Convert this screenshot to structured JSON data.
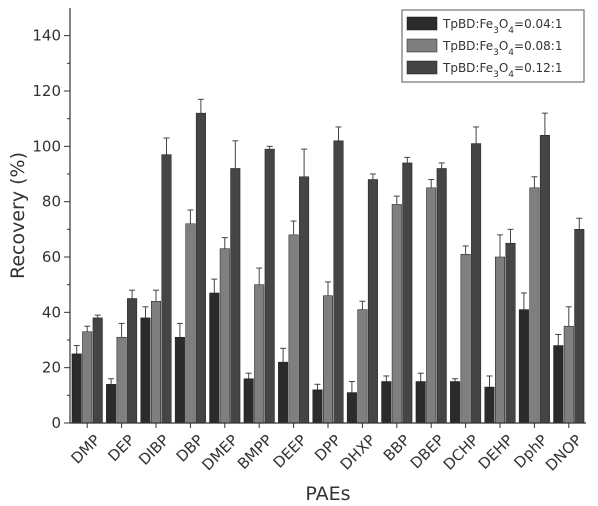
{
  "chart_data": {
    "type": "bar",
    "xlabel": "PAEs",
    "ylabel": "Recovery (%)",
    "ylim": [
      0,
      150
    ],
    "yticks": [
      0,
      20,
      40,
      60,
      80,
      100,
      120,
      140
    ],
    "categories": [
      "DMP",
      "DEP",
      "DIBP",
      "DBP",
      "DMEP",
      "BMPP",
      "DEEP",
      "DPP",
      "DHXP",
      "BBP",
      "DBEP",
      "DCHP",
      "DEHP",
      "DphP",
      "DNOP"
    ],
    "series": [
      {
        "name": "TpBD:Fe3O4=0.04:1",
        "color": "#2b2b2b",
        "values": [
          25,
          14,
          38,
          31,
          47,
          16,
          22,
          12,
          11,
          15,
          15,
          15,
          13,
          41,
          28
        ],
        "errors": [
          3,
          2,
          4,
          5,
          5,
          2,
          5,
          2,
          4,
          2,
          3,
          1,
          4,
          6,
          4
        ]
      },
      {
        "name": "TpBD:Fe3O4=0.08:1",
        "color": "#7f7f7f",
        "values": [
          33,
          31,
          44,
          72,
          63,
          50,
          68,
          46,
          41,
          79,
          85,
          61,
          60,
          85,
          35
        ],
        "errors": [
          2,
          5,
          4,
          5,
          4,
          6,
          5,
          5,
          3,
          3,
          3,
          3,
          8,
          4,
          7
        ]
      },
      {
        "name": "TpBD:Fe3O4=0.12:1",
        "color": "#454545",
        "values": [
          38,
          45,
          97,
          112,
          92,
          99,
          89,
          102,
          88,
          94,
          92,
          101,
          65,
          104,
          70
        ],
        "errors": [
          1,
          3,
          6,
          5,
          10,
          1,
          10,
          5,
          2,
          2,
          2,
          6,
          5,
          8,
          4
        ]
      }
    ],
    "legend": {
      "placement": "top-right",
      "entries": [
        {
          "prefix": "TpBD:Fe",
          "sub1": "3",
          "mid": "O",
          "sub2": "4",
          "suffix": "=0.04:1"
        },
        {
          "prefix": "TpBD:Fe",
          "sub1": "3",
          "mid": "O",
          "sub2": "4",
          "suffix": "=0.08:1"
        },
        {
          "prefix": "TpBD:Fe",
          "sub1": "3",
          "mid": "O",
          "sub2": "4",
          "suffix": "=0.12:1"
        }
      ]
    },
    "grid": false
  }
}
